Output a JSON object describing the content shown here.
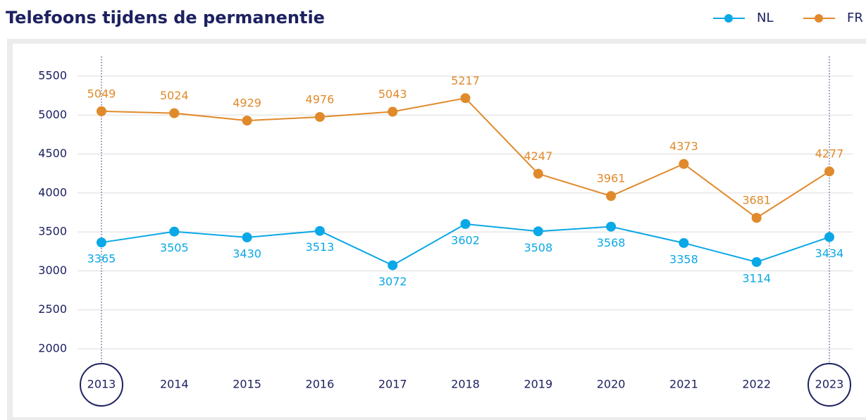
{
  "chart_data": {
    "type": "line",
    "title": "Telefoons tijdens de permanentie",
    "categories": [
      "2013",
      "2014",
      "2015",
      "2016",
      "2017",
      "2018",
      "2019",
      "2020",
      "2021",
      "2022",
      "2023"
    ],
    "series": [
      {
        "name": "NL",
        "color": "#0aa8e6",
        "values": [
          3365,
          3505,
          3430,
          3513,
          3072,
          3602,
          3508,
          3568,
          3358,
          3114,
          3434
        ]
      },
      {
        "name": "FR",
        "color": "#e08a2b",
        "values": [
          5049,
          5024,
          4929,
          4976,
          5043,
          5217,
          4247,
          3961,
          4373,
          3681,
          4277
        ]
      }
    ],
    "ylim": [
      2000,
      5500
    ],
    "yticks": [
      2000,
      2500,
      3000,
      3500,
      4000,
      4500,
      5000,
      5500
    ],
    "grid": true,
    "legend": "top-right"
  }
}
